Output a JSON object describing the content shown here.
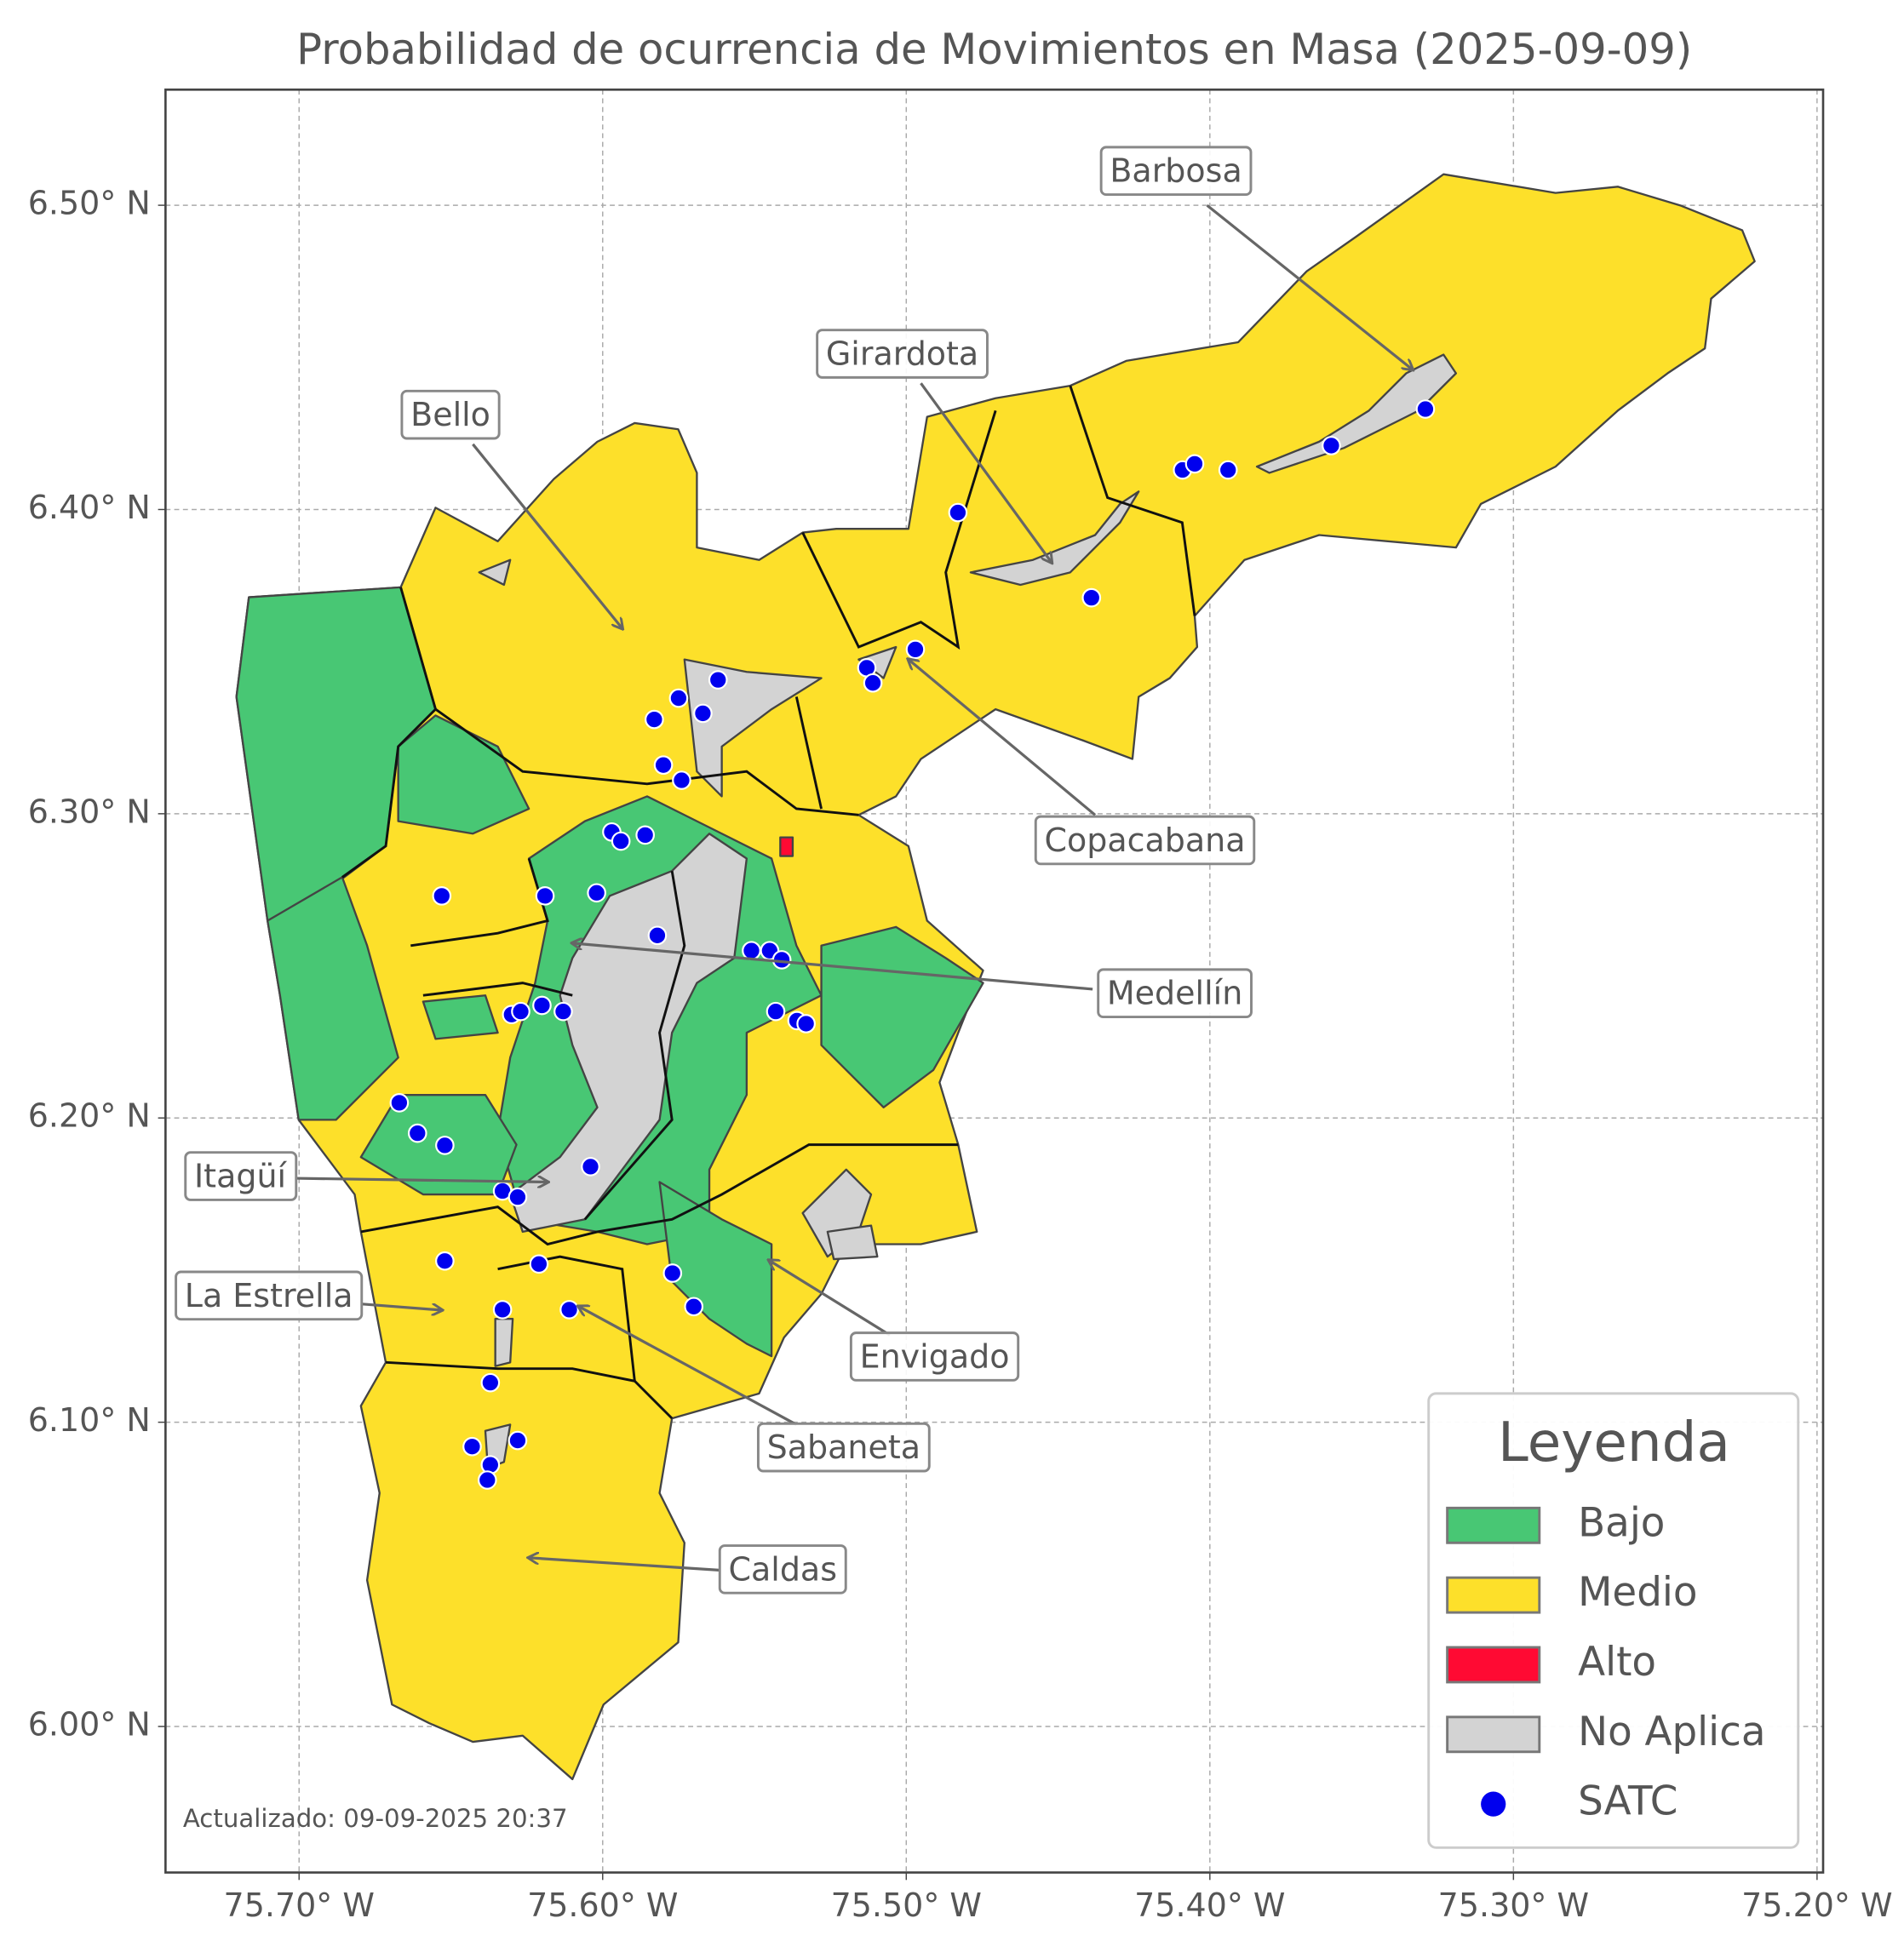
{
  "chart_data": {
    "type": "map",
    "title": "Probabilidad de ocurrencia de Movimientos en Masa (2025-09-09)",
    "xlim": [
      -75.744,
      -75.198
    ],
    "ylim": [
      5.952,
      6.538
    ],
    "xticks": [
      {
        "value": -75.7,
        "label": "75.70° W"
      },
      {
        "value": -75.6,
        "label": "75.60° W"
      },
      {
        "value": -75.5,
        "label": "75.50° W"
      },
      {
        "value": -75.4,
        "label": "75.40° W"
      },
      {
        "value": -75.3,
        "label": "75.30° W"
      },
      {
        "value": -75.2,
        "label": "75.20° W"
      }
    ],
    "yticks": [
      {
        "value": 6.0,
        "label": "6.00° N"
      },
      {
        "value": 6.1,
        "label": "6.10° N"
      },
      {
        "value": 6.2,
        "label": "6.20° N"
      },
      {
        "value": 6.3,
        "label": "6.30° N"
      },
      {
        "value": 6.4,
        "label": "6.40° N"
      },
      {
        "value": 6.5,
        "label": "6.50° N"
      }
    ],
    "grid": true,
    "legend": {
      "title": "Leyenda",
      "position": "lower right",
      "entries": [
        {
          "name": "Bajo",
          "color": "#48c774"
        },
        {
          "name": "Medio",
          "color": "#fde02a"
        },
        {
          "name": "Alto",
          "color": "#ff0a33"
        },
        {
          "name": "No Aplica",
          "color": "#d3d3d3"
        }
      ]
    },
    "points": {
      "name": "SATC",
      "color": "#0000ee",
      "x": [
        -75.483,
        -75.409,
        -75.405,
        -75.394,
        -75.36,
        -75.329,
        -75.439,
        -75.497,
        -75.513,
        -75.511,
        -75.562,
        -75.575,
        -75.567,
        -75.583,
        -75.58,
        -75.574,
        -75.597,
        -75.594,
        -75.586,
        -75.619,
        -75.602,
        -75.653,
        -75.582,
        -75.551,
        -75.545,
        -75.541,
        -75.543,
        -75.536,
        -75.533,
        -75.63,
        -75.627,
        -75.62,
        -75.613,
        -75.667,
        -75.661,
        -75.652,
        -75.604,
        -75.633,
        -75.628,
        -75.652,
        -75.621,
        -75.577,
        -75.57,
        -75.633,
        -75.611,
        -75.637,
        -75.643,
        -75.628,
        -75.637,
        -75.638
      ],
      "y": [
        6.399,
        6.413,
        6.415,
        6.413,
        6.421,
        6.433,
        6.371,
        6.354,
        6.348,
        6.343,
        6.344,
        6.338,
        6.333,
        6.331,
        6.316,
        6.311,
        6.294,
        6.291,
        6.293,
        6.273,
        6.274,
        6.273,
        6.26,
        6.255,
        6.255,
        6.252,
        6.235,
        6.232,
        6.231,
        6.234,
        6.235,
        6.237,
        6.235,
        6.205,
        6.195,
        6.191,
        6.184,
        6.176,
        6.174,
        6.153,
        6.152,
        6.149,
        6.138,
        6.137,
        6.137,
        6.113,
        6.092,
        6.094,
        6.086,
        6.081
      ]
    },
    "annotations": [
      "Barbosa",
      "Girardota",
      "Bello",
      "Copacabana",
      "Medellín",
      "Itagüí",
      "La Estrella",
      "Envigado",
      "Sabaneta",
      "Caldas"
    ],
    "note": "Actualizado: 09-09-2025 20:37"
  }
}
